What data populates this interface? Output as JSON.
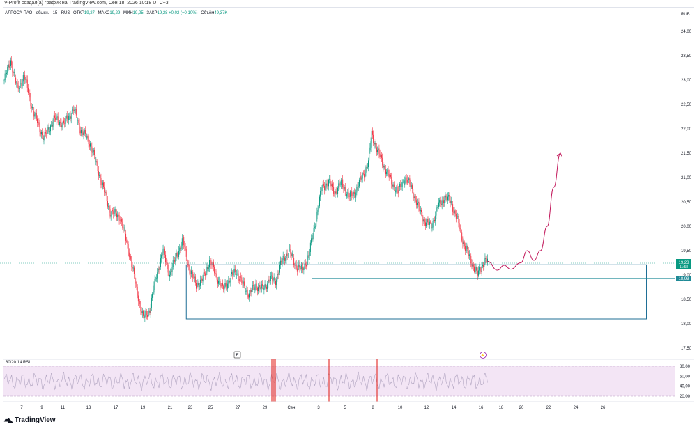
{
  "header": {
    "caption": "V-Profit создал(а) график на TradingView.com, Сен 18, 2026 10:18 UTC+3"
  },
  "legend": {
    "symbol": "АЛРОСА ПАО - обыкн. · 15 · RUS",
    "open_label": "ОТКР",
    "open": "19,27",
    "high_label": "МАКС",
    "high": "19,29",
    "low_label": "МИН",
    "low": "19,25",
    "close_label": "ЗАКР",
    "close": "19,28",
    "change": "+0,02 (+0,10%)",
    "volume_label": "Объём",
    "volume": "49,37K"
  },
  "rsi": {
    "label": "80/20 14 RSI",
    "ticks": [
      "80,00",
      "60,00",
      "40,00",
      "20,00"
    ]
  },
  "markers": {
    "earnings": "E",
    "dividend": "⚡"
  },
  "badges": {
    "last_price": "19,28",
    "countdown": "11:58",
    "level_price": "18,93"
  },
  "logo": {
    "text": "TradingView"
  },
  "colors": {
    "up": "#089981",
    "down": "#f23645",
    "box": "#1f6f96",
    "level": "#1f8a96",
    "projection": "#c2185b",
    "rsi_fill": "#f3e5f5",
    "rsi_line": "#b0a4c0",
    "rsi_spike": "#e53935"
  },
  "chart_data": {
    "type": "candlestick",
    "currency": "RUB",
    "y_ticks": [
      "24,00",
      "23,50",
      "23,00",
      "22,50",
      "22,00",
      "21,50",
      "21,00",
      "20,50",
      "20,00",
      "19,50",
      "19,00",
      "18,50",
      "18,00",
      "17,50"
    ],
    "ylim": [
      17.3,
      24.3
    ],
    "x_ticks": [
      "7",
      "9",
      "11",
      "13",
      "17",
      "19",
      "21",
      "23",
      "25",
      "27",
      "29",
      "Сен",
      "3",
      "5",
      "8",
      "10",
      "12",
      "14",
      "16",
      "18",
      "20",
      "22",
      "24",
      "26"
    ],
    "price_path": [
      [
        0,
        23.0
      ],
      [
        2,
        23.4
      ],
      [
        4,
        22.8
      ],
      [
        6,
        23.1
      ],
      [
        9,
        22.3
      ],
      [
        12,
        21.8
      ],
      [
        15,
        22.2
      ],
      [
        18,
        22.1
      ],
      [
        21,
        22.4
      ],
      [
        23,
        22.0
      ],
      [
        26,
        21.7
      ],
      [
        29,
        21.0
      ],
      [
        32,
        20.3
      ],
      [
        35,
        20.2
      ],
      [
        38,
        19.4
      ],
      [
        40,
        18.7
      ],
      [
        42,
        18.1
      ],
      [
        44,
        18.3
      ],
      [
        46,
        19.0
      ],
      [
        48,
        19.5
      ],
      [
        50,
        19.0
      ],
      [
        52,
        19.4
      ],
      [
        54,
        19.7
      ],
      [
        56,
        19.1
      ],
      [
        58,
        18.8
      ],
      [
        60,
        18.9
      ],
      [
        62,
        19.3
      ],
      [
        64,
        19.0
      ],
      [
        66,
        18.7
      ],
      [
        68,
        18.9
      ],
      [
        70,
        19.1
      ],
      [
        72,
        18.8
      ],
      [
        74,
        18.6
      ],
      [
        76,
        18.8
      ],
      [
        78,
        18.7
      ],
      [
        80,
        18.9
      ],
      [
        82,
        18.9
      ],
      [
        84,
        19.3
      ],
      [
        86,
        19.5
      ],
      [
        88,
        19.2
      ],
      [
        90,
        19.1
      ],
      [
        92,
        19.4
      ],
      [
        94,
        20.1
      ],
      [
        96,
        20.8
      ],
      [
        98,
        20.9
      ],
      [
        100,
        20.7
      ],
      [
        102,
        20.9
      ],
      [
        104,
        20.6
      ],
      [
        106,
        20.7
      ],
      [
        108,
        21.0
      ],
      [
        110,
        21.3
      ],
      [
        111,
        21.9
      ],
      [
        113,
        21.5
      ],
      [
        115,
        21.2
      ],
      [
        117,
        20.9
      ],
      [
        119,
        20.7
      ],
      [
        121,
        21.0
      ],
      [
        123,
        20.8
      ],
      [
        125,
        20.4
      ],
      [
        127,
        20.1
      ],
      [
        129,
        20.0
      ],
      [
        131,
        20.4
      ],
      [
        133,
        20.6
      ],
      [
        135,
        20.5
      ],
      [
        137,
        20.1
      ],
      [
        139,
        19.6
      ],
      [
        141,
        19.3
      ],
      [
        143,
        19.0
      ],
      [
        145,
        19.3
      ],
      [
        146,
        19.28
      ]
    ],
    "annotations": {
      "range_box": {
        "x_from": 55,
        "x_to": 194,
        "y_low": 18.1,
        "y_high": 19.21
      },
      "level_line": {
        "x_from": 93,
        "y": 18.93
      },
      "projection_path": [
        [
          146,
          19.28
        ],
        [
          149,
          19.1
        ],
        [
          151,
          19.2
        ],
        [
          153,
          19.12
        ],
        [
          156,
          19.25
        ],
        [
          158,
          19.5
        ],
        [
          160,
          19.3
        ],
        [
          162,
          19.5
        ],
        [
          164,
          20.0
        ],
        [
          166,
          20.8
        ],
        [
          168,
          21.5
        ]
      ]
    }
  }
}
